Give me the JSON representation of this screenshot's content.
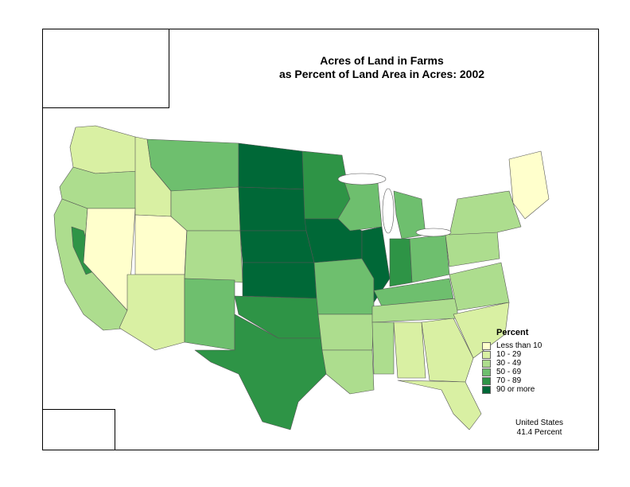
{
  "title": {
    "line1": "Acres of Land in Farms",
    "line2": "as Percent of Land Area in Acres:  2002"
  },
  "legend": {
    "title": "Percent",
    "classes": [
      {
        "label": "Less than 10",
        "color": "#ffffcc"
      },
      {
        "label": "10 - 29",
        "color": "#d9f0a3"
      },
      {
        "label": "30 - 49",
        "color": "#addd8e"
      },
      {
        "label": "50 - 69",
        "color": "#6ebf6e"
      },
      {
        "label": "70 - 89",
        "color": "#2e9446"
      },
      {
        "label": "90 or more",
        "color": "#006837"
      }
    ]
  },
  "summary": {
    "line1": "United States",
    "line2": "41.4 Percent"
  }
}
